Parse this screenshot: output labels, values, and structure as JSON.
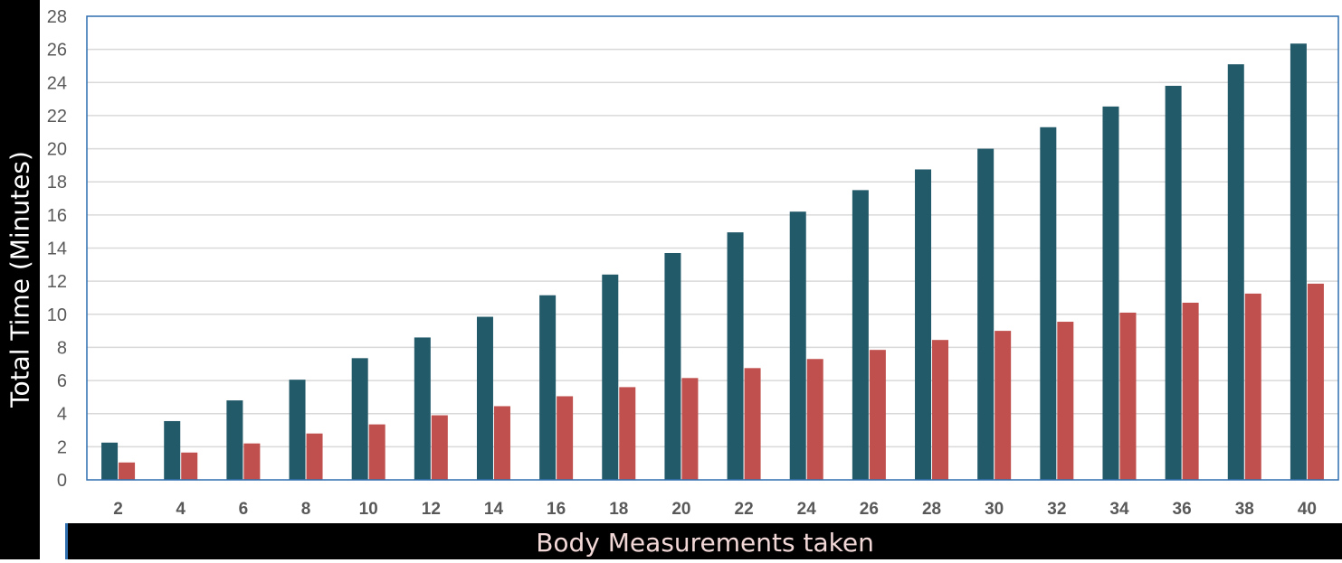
{
  "chart_data": {
    "type": "bar",
    "title": "",
    "xlabel": "Body Measurements taken",
    "ylabel": "Total Time (Minutes)",
    "categories": [
      "2",
      "4",
      "6",
      "8",
      "10",
      "12",
      "14",
      "16",
      "18",
      "20",
      "22",
      "24",
      "26",
      "28",
      "30",
      "32",
      "34",
      "36",
      "38",
      "40"
    ],
    "series": [
      {
        "values": [
          2.25,
          3.55,
          4.8,
          6.05,
          7.35,
          8.6,
          9.85,
          11.15,
          12.4,
          13.7,
          14.95,
          16.2,
          17.5,
          18.75,
          20.0,
          21.3,
          22.55,
          23.8,
          25.1,
          26.35
        ]
      },
      {
        "values": [
          1.05,
          1.65,
          2.2,
          2.8,
          3.35,
          3.9,
          4.45,
          5.05,
          5.6,
          6.15,
          6.75,
          7.3,
          7.85,
          8.45,
          9.0,
          9.55,
          10.1,
          10.7,
          11.25,
          11.85
        ]
      }
    ],
    "ylim": [
      0,
      28
    ],
    "yticks": [
      0,
      2,
      4,
      6,
      8,
      10,
      12,
      14,
      16,
      18,
      20,
      22,
      24,
      26,
      28
    ],
    "grid": true,
    "legend": "none",
    "colors": {
      "series": [
        "#235A6A",
        "#C0504D"
      ],
      "grid": "#D9D9D9",
      "tick_text": "#595959",
      "axis_title_bar": "#000000",
      "plot_border": "#2F6FB0"
    }
  }
}
